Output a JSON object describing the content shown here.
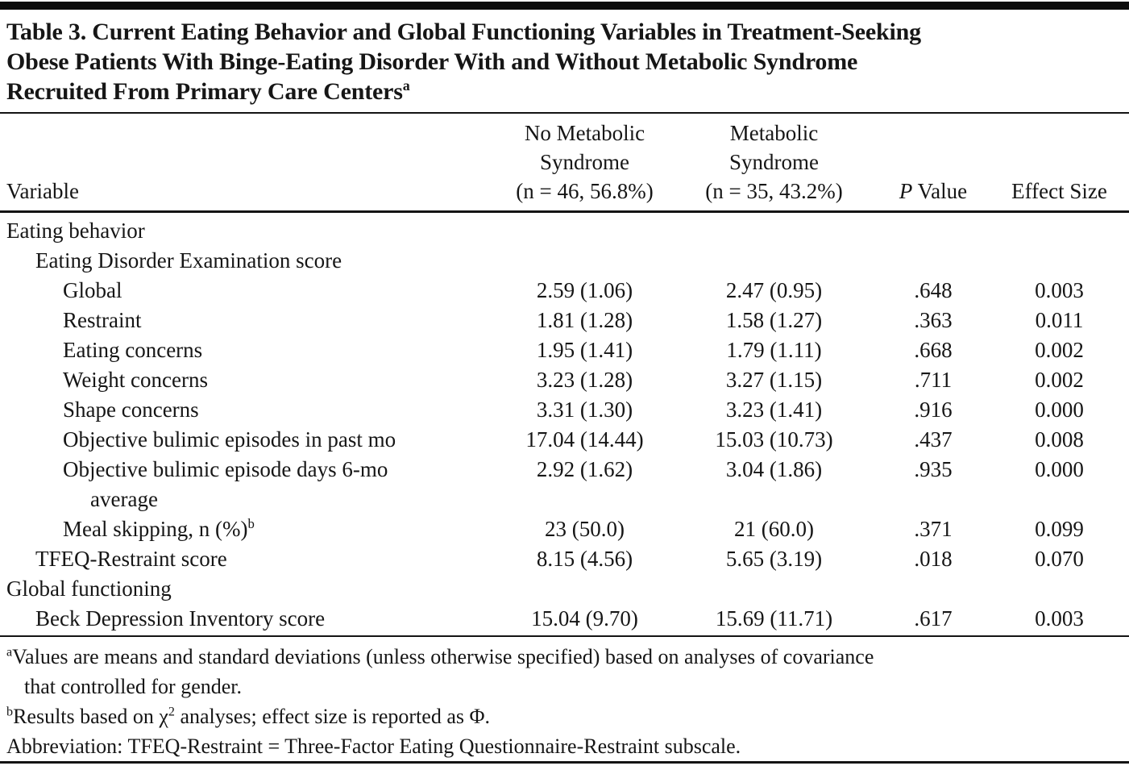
{
  "title": {
    "lines": [
      "Table 3. Current Eating Behavior and Global Functioning Variables in Treatment-Seeking",
      "Obese Patients With Binge-Eating Disorder With and Without Metabolic Syndrome",
      "Recruited From Primary Care Centers"
    ],
    "superscript": "a"
  },
  "table": {
    "header": {
      "variable": "Variable",
      "group1_lines": [
        "No Metabolic",
        "Syndrome",
        "(n = 46, 56.8%)"
      ],
      "group2_lines": [
        "Metabolic",
        "Syndrome",
        "(n = 35, 43.2%)"
      ],
      "p_italic": "P",
      "p_rest": " Value",
      "effect": "Effect Size"
    },
    "rows": [
      {
        "label": "Eating behavior",
        "indent": 0,
        "values": null
      },
      {
        "label": "Eating Disorder Examination score",
        "indent": 1,
        "values": null
      },
      {
        "label": "Global",
        "indent": 2,
        "values": [
          "2.59 (1.06)",
          "2.47 (0.95)",
          ".648",
          "0.003"
        ]
      },
      {
        "label": "Restraint",
        "indent": 2,
        "values": [
          "1.81 (1.28)",
          "1.58 (1.27)",
          ".363",
          "0.011"
        ]
      },
      {
        "label": "Eating concerns",
        "indent": 2,
        "values": [
          "1.95 (1.41)",
          "1.79 (1.11)",
          ".668",
          "0.002"
        ]
      },
      {
        "label": "Weight concerns",
        "indent": 2,
        "values": [
          "3.23 (1.28)",
          "3.27 (1.15)",
          ".711",
          "0.002"
        ]
      },
      {
        "label": "Shape concerns",
        "indent": 2,
        "values": [
          "3.31 (1.30)",
          "3.23 (1.41)",
          ".916",
          "0.000"
        ]
      },
      {
        "label": "Objective bulimic episodes in past mo",
        "indent": 2,
        "values": [
          "17.04 (14.44)",
          "15.03 (10.73)",
          ".437",
          "0.008"
        ]
      },
      {
        "label": "Objective bulimic episode days 6-mo",
        "label2": "average",
        "indent": 2,
        "values": [
          "2.92 (1.62)",
          "3.04 (1.86)",
          ".935",
          "0.000"
        ]
      },
      {
        "label": "Meal skipping, n (%)",
        "sup": "b",
        "indent": 2,
        "values": [
          "23 (50.0)",
          "21 (60.0)",
          ".371",
          "0.099"
        ]
      },
      {
        "label": "TFEQ-Restraint score",
        "indent": 1,
        "values": [
          "8.15 (4.56)",
          "5.65 (3.19)",
          ".018",
          "0.070"
        ]
      },
      {
        "label": "Global functioning",
        "indent": 0,
        "values": null
      },
      {
        "label": "Beck Depression Inventory score",
        "indent": 1,
        "values": [
          "15.04 (9.70)",
          "15.69 (11.71)",
          ".617",
          "0.003"
        ]
      }
    ]
  },
  "footnotes": {
    "lines": [
      {
        "marker": "a",
        "hang": false,
        "parts": [
          {
            "t": "Values are means and standard deviations (unless otherwise specified) based on analyses of covariance"
          }
        ]
      },
      {
        "marker": null,
        "hang": true,
        "parts": [
          {
            "t": "that controlled for gender."
          }
        ]
      },
      {
        "marker": "b",
        "hang": false,
        "parts": [
          {
            "t": "Results based on χ"
          },
          {
            "s": "2"
          },
          {
            "t": " analyses; effect size is reported as Φ."
          }
        ]
      },
      {
        "marker": null,
        "hang": false,
        "parts": [
          {
            "t": "Abbreviation: TFEQ-Restraint = Three-Factor Eating Questionnaire-Restraint subscale."
          }
        ]
      }
    ]
  },
  "colors": {
    "background": "#ffffff",
    "text": "#161616",
    "rule": "#141414"
  }
}
